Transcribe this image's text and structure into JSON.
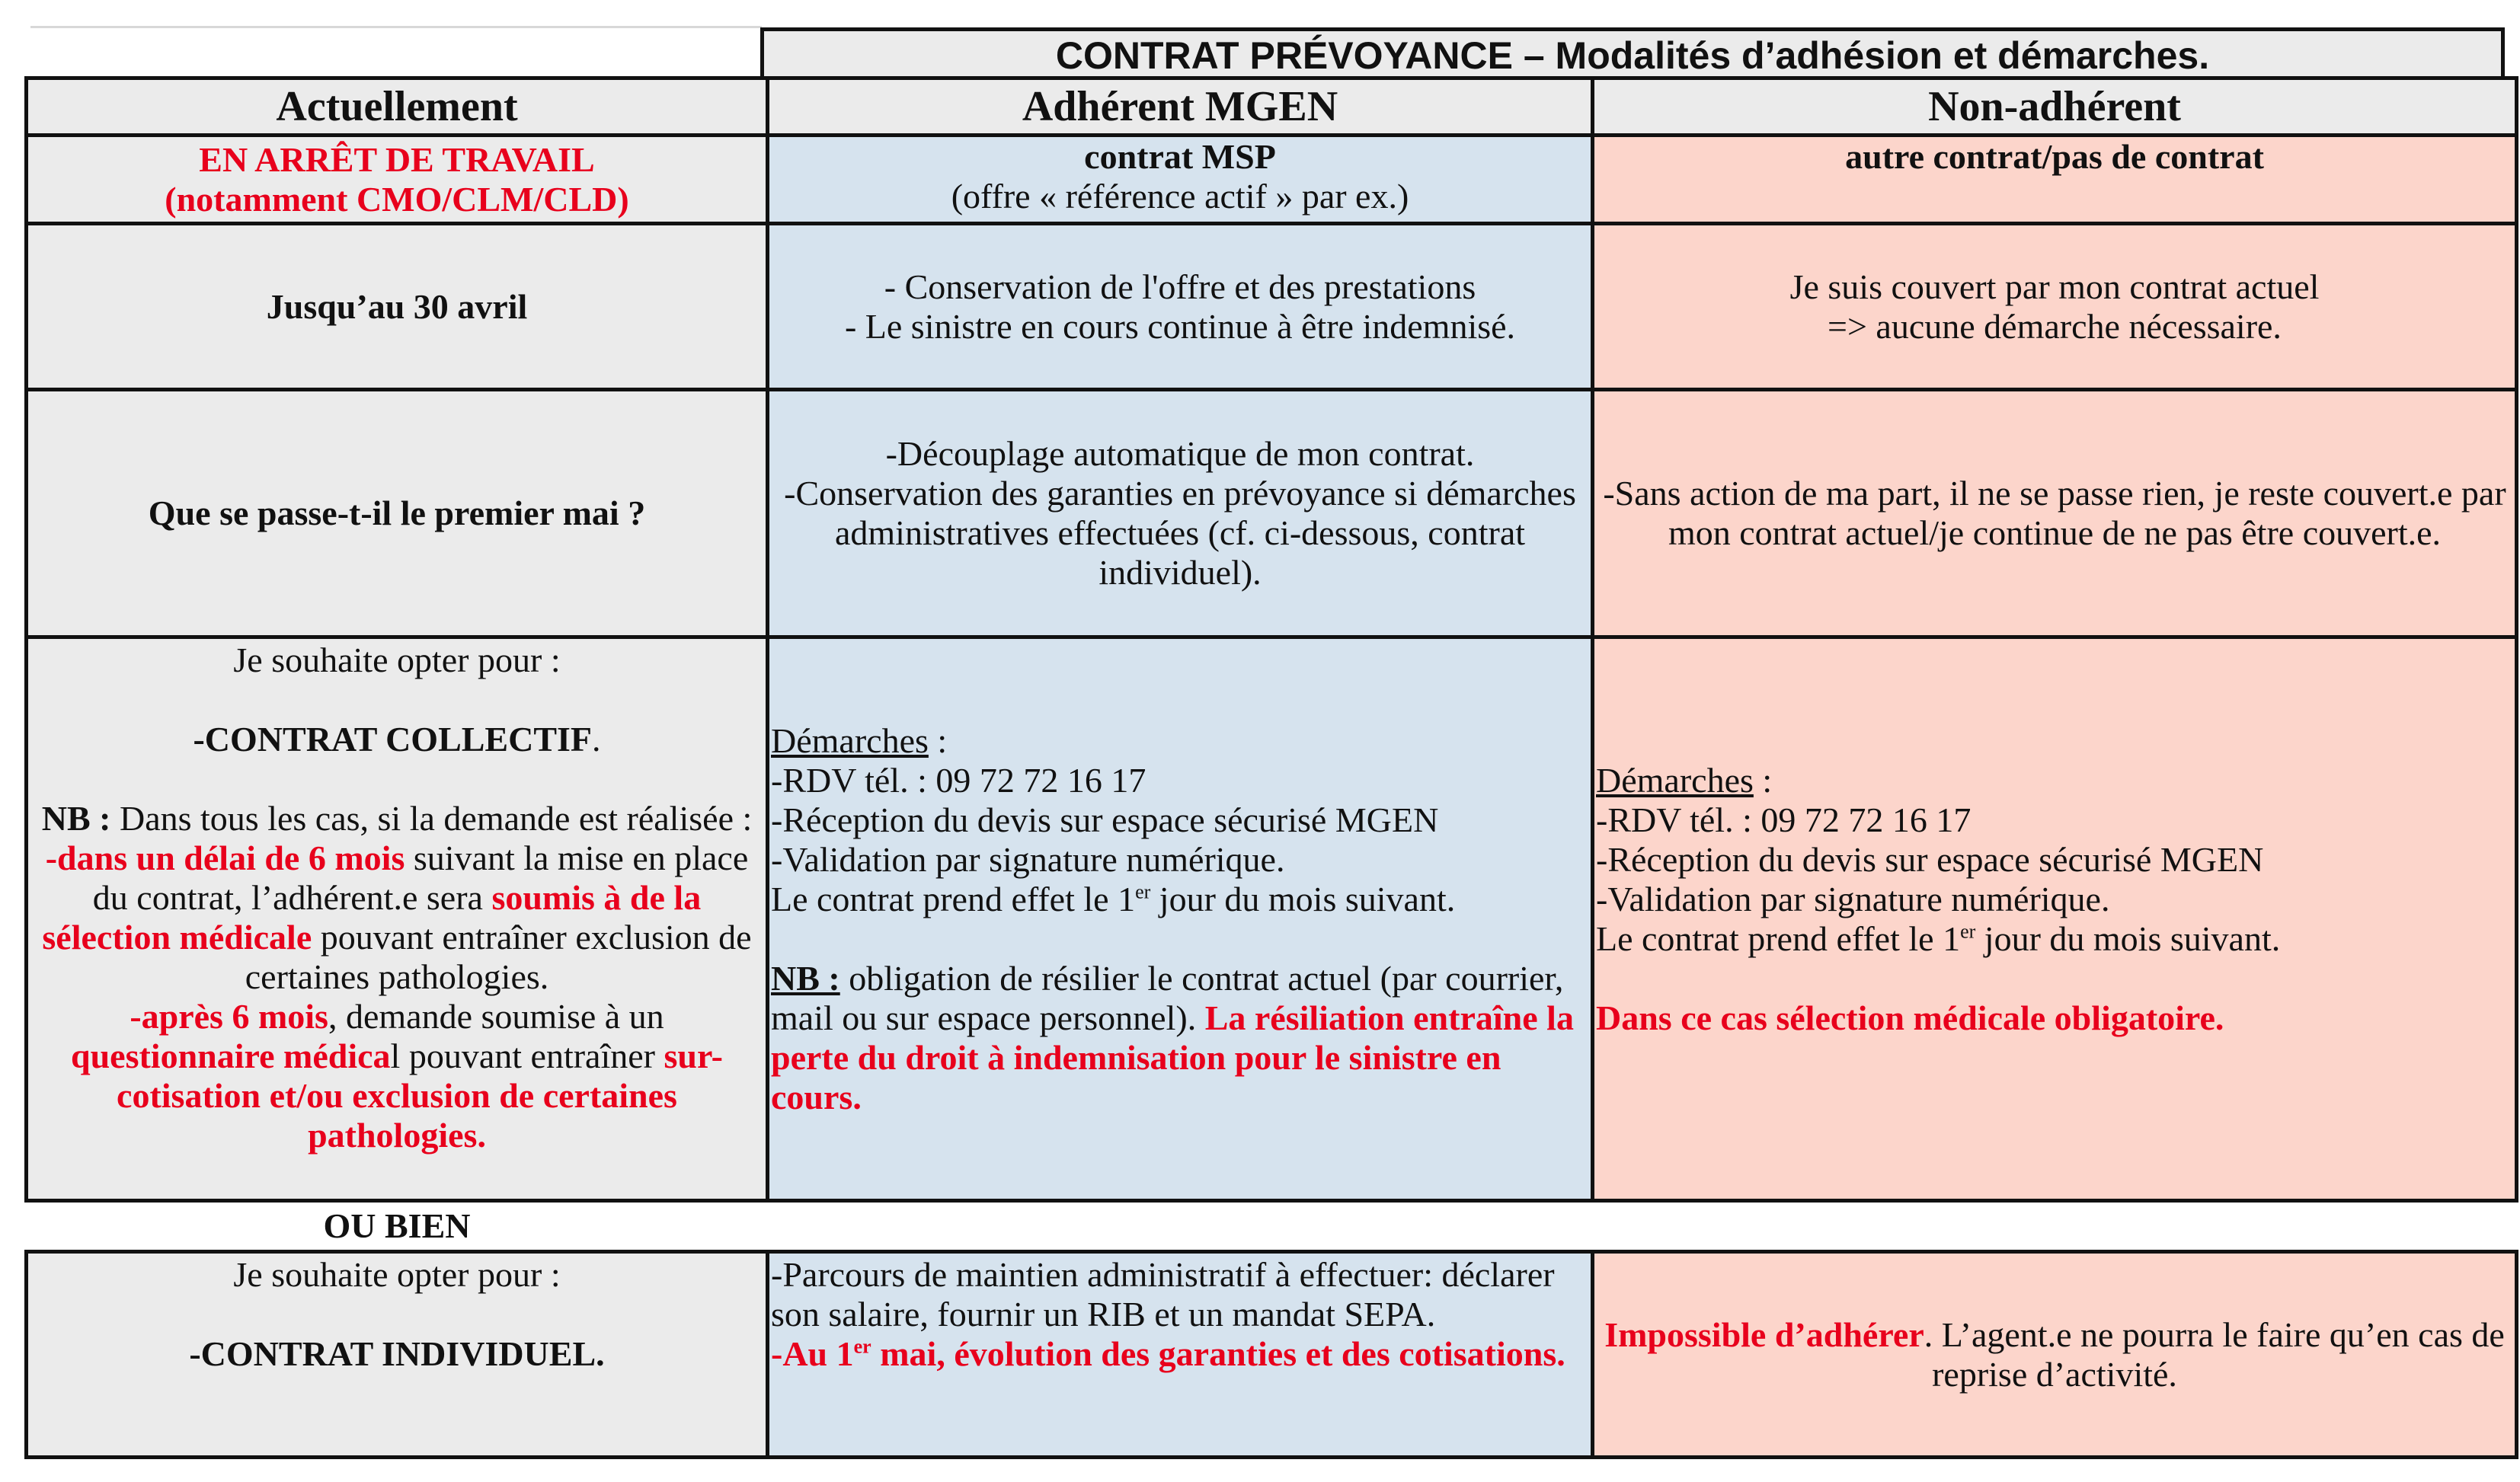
{
  "title": "CONTRAT PRÉVOYANCE – Modalités d’adhésion et démarches.",
  "headers": {
    "col1": "Actuellement",
    "col2": "Adhérent MGEN",
    "col3": "Non-adhérent"
  },
  "row_status": {
    "col1_line1": "EN ARRÊT DE TRAVAIL",
    "col1_line2": "(notamment CMO/CLM/CLD)",
    "col2_line1": "contrat MSP",
    "col2_line2": "(offre « référence actif » par ex.)",
    "col3_line1": "autre contrat/pas de contrat"
  },
  "row_april": {
    "col1": "Jusqu’au 30 avril",
    "col2_line1": "- Conservation de l'offre et des prestations",
    "col2_line2": "- Le sinistre en cours continue à être indemnisé.",
    "col3_line1": "Je suis couvert par mon contrat actuel",
    "col3_line2": "=> aucune démarche nécessaire."
  },
  "row_may": {
    "col1": "Que se passe-t-il le premier mai ?",
    "col2_line1": "-Découplage automatique de mon contrat.",
    "col2_line2": "-Conservation des garanties en prévoyance si démarches administratives effectuées (cf. ci-dessous, contrat individuel).",
    "col3": "-Sans action de ma part, il ne se passe rien, je reste couvert.e par mon contrat actuel/je continue de ne pas être couvert.e."
  },
  "row_collectif": {
    "col1": {
      "intro": "Je souhaite opter pour :",
      "choice": "-CONTRAT COLLECTIF",
      "choice_end": ".",
      "nb": "NB :",
      "nb_text": " Dans tous les cas, si la demande est réalisée :",
      "r1": "-dans un délai de 6 mois",
      "t1": " suivant la mise en place du contrat, l’adhérent.e sera ",
      "r2": "soumis à de la sélection médicale",
      "t2": " pouvant entraîner exclusion de certaines pathologies.",
      "r3": "-après 6 mois",
      "t3": ", demande soumise à un ",
      "r4": "questionnaire médica",
      "t4": "l pouvant entraîner ",
      "r5": "sur-cotisation et/ou exclusion de certaines pathologies",
      "t5": "."
    },
    "col2": {
      "demarches": "Démarches",
      "demarches_end": " :",
      "l1": "-RDV tél. : 09 72 72 16 17",
      "l2": "-Réception du devis sur espace sécurisé MGEN",
      "l3": "-Validation par signature numérique.",
      "l4a": "Le contrat prend effet le 1",
      "l4sup": "er",
      "l4b": " jour du mois suivant.",
      "nb": "NB :",
      "nb_text": " obligation de résilier le contrat actuel (par courrier, mail ou sur espace personnel). ",
      "nb_red": "La résiliation entraîne la perte du droit à indemnisation pour le sinistre en cours."
    },
    "col3": {
      "demarches": "Démarches",
      "demarches_end": " :",
      "l1": "-RDV tél. : 09 72 72 16 17",
      "l2": "-Réception du devis sur espace sécurisé MGEN",
      "l3": "-Validation par signature numérique.",
      "l4a": "Le contrat prend effet le 1",
      "l4sup": "er",
      "l4b": " jour du mois suivant.",
      "red": "Dans ce cas sélection médicale obligatoire."
    }
  },
  "separator": "OU BIEN",
  "row_individuel": {
    "col1": {
      "intro": "Je souhaite opter pour :",
      "choice": "-CONTRAT INDIVIDUEL."
    },
    "col2": {
      "text": "-Parcours de maintien administratif à effectuer: déclarer son salaire, fournir un RIB et un mandat SEPA.",
      "red_a": "-Au 1",
      "red_sup": "er",
      "red_b": " mai, évolution des garanties et des cotisations."
    },
    "col3": {
      "red": "Impossible d’adhérer",
      "text": ". L’agent.e ne pourra le faire qu’en cas de reprise d’activité."
    }
  },
  "colors": {
    "gray": "#ebebeb",
    "blue": "#d6e3ee",
    "pink": "#fcd5cb",
    "red": "#e8001c"
  }
}
